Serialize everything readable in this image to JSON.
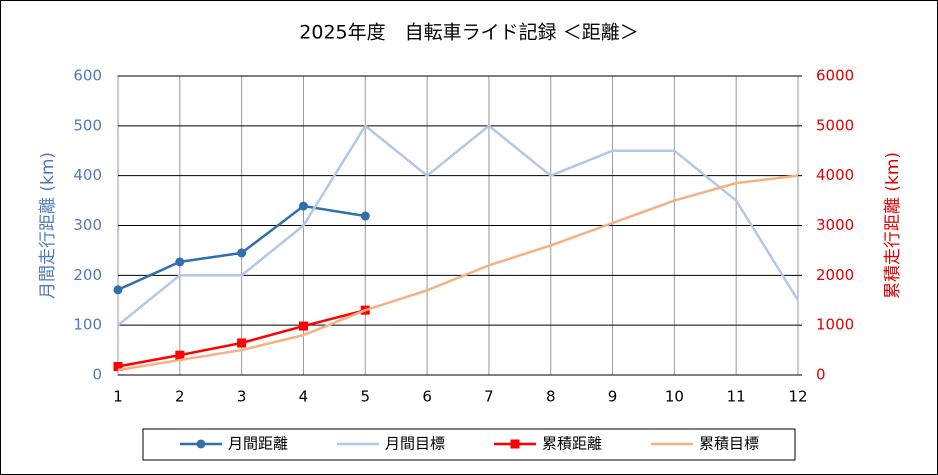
{
  "chart_data": {
    "type": "line",
    "title": "2025年度　自転車ライド記録 ＜距離＞",
    "ylabel": "月間走行距離 (km)",
    "y2label": "累積走行距離 (km)",
    "ylabel_color": "#4f7bb8",
    "y2label_color": "#e00000",
    "x": [
      1,
      2,
      3,
      4,
      5,
      6,
      7,
      8,
      9,
      10,
      11,
      12
    ],
    "xlim": [
      1,
      12
    ],
    "xticks": [
      1,
      2,
      3,
      4,
      5,
      6,
      7,
      8,
      9,
      10,
      11,
      12
    ],
    "ylim": [
      0,
      600
    ],
    "yticks": [
      0,
      100,
      200,
      300,
      400,
      500,
      600
    ],
    "y2lim": [
      0,
      6000
    ],
    "y2ticks": [
      0,
      1000,
      2000,
      3000,
      4000,
      5000,
      6000
    ],
    "grid": true,
    "legend": "bottom",
    "series": [
      {
        "name": "月間距離",
        "color": "#2e6fad",
        "marker": "circle",
        "values": [
          171,
          227,
          245,
          339,
          319,
          null,
          null,
          null,
          null,
          null,
          null,
          null
        ]
      },
      {
        "name": "月間目標",
        "color": "#b4c7e7",
        "values": [
          100,
          200,
          200,
          300,
          500,
          400,
          500,
          400,
          450,
          450,
          350,
          150
        ]
      },
      {
        "name": "累積距離",
        "color": "#ff0000",
        "marker": "square",
        "axis": "y2",
        "values": [
          171,
          398,
          643,
          982,
          1301,
          null,
          null,
          null,
          null,
          null,
          null,
          null
        ]
      },
      {
        "name": "累積目標",
        "color": "#f4b183",
        "axis": "y2",
        "values": [
          100,
          300,
          500,
          800,
          1300,
          1700,
          2200,
          2600,
          3050,
          3500,
          3850,
          4000
        ]
      }
    ]
  }
}
